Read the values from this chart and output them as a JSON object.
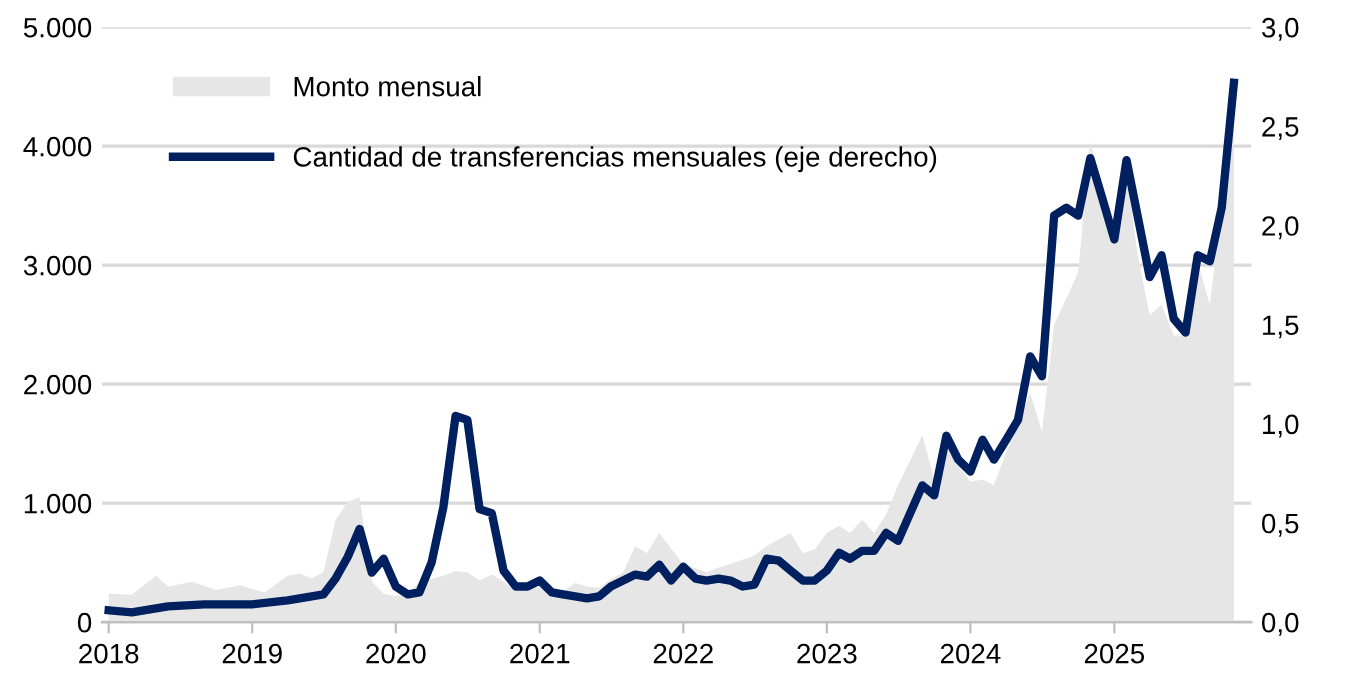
{
  "chart_data": {
    "type": "area",
    "series": [
      {
        "name": "Monto mensual",
        "color": "#e6e6e6",
        "x": [
          "2018-01",
          "2018-03",
          "2018-05",
          "2018-06",
          "2018-08",
          "2018-10",
          "2018-12",
          "2019-02",
          "2019-04",
          "2019-05",
          "2019-06",
          "2019-07",
          "2019-08",
          "2019-09",
          "2019-10",
          "2019-11",
          "2019-12",
          "2020-01",
          "2020-02",
          "2020-03",
          "2020-05",
          "2020-06",
          "2020-07",
          "2020-08",
          "2020-09",
          "2020-10",
          "2020-11",
          "2020-12",
          "2021-01",
          "2021-03",
          "2021-04",
          "2021-05",
          "2021-06",
          "2021-07",
          "2021-08",
          "2021-09",
          "2021-10",
          "2021-11",
          "2021-12",
          "2022-01",
          "2022-03",
          "2022-04",
          "2022-05",
          "2022-07",
          "2022-08",
          "2022-10",
          "2022-11",
          "2022-12",
          "2023-01",
          "2023-02",
          "2023-03",
          "2023-04",
          "2023-05",
          "2023-06",
          "2023-07",
          "2023-09",
          "2023-10",
          "2023-11",
          "2023-12",
          "2024-01",
          "2024-02",
          "2024-03",
          "2024-04",
          "2024-05",
          "2024-06",
          "2024-07",
          "2024-08",
          "2024-09",
          "2024-10",
          "2024-11",
          "2024-12",
          "2025-01",
          "2025-02",
          "2025-03",
          "2025-04",
          "2025-05",
          "2025-06",
          "2025-07",
          "2025-08",
          "2025-09",
          "2025-10",
          "2025-11"
        ],
        "values": [
          240,
          230,
          390,
          300,
          340,
          270,
          310,
          250,
          390,
          410,
          370,
          420,
          860,
          1010,
          1050,
          340,
          240,
          220,
          240,
          340,
          390,
          430,
          420,
          350,
          400,
          340,
          260,
          290,
          290,
          260,
          330,
          300,
          290,
          360,
          420,
          640,
          580,
          750,
          620,
          490,
          420,
          460,
          490,
          560,
          640,
          750,
          580,
          610,
          750,
          810,
          750,
          860,
          750,
          910,
          1150,
          1570,
          1200,
          1480,
          1320,
          1180,
          1200,
          1150,
          1430,
          1650,
          1930,
          1600,
          2500,
          2720,
          2940,
          4040,
          3620,
          3340,
          3790,
          3090,
          2580,
          2670,
          2410,
          2410,
          3020,
          2670,
          3510,
          4240
        ]
      },
      {
        "name": "Cantidad de transferencias mensuales (eje derecho)",
        "type": "line",
        "axis": "y2",
        "color": "#002060",
        "x": [
          "2018-01",
          "2018-03",
          "2018-06",
          "2018-09",
          "2019-01",
          "2019-04",
          "2019-06",
          "2019-07",
          "2019-08",
          "2019-09",
          "2019-10",
          "2019-11",
          "2019-12",
          "2020-01",
          "2020-02",
          "2020-03",
          "2020-04",
          "2020-05",
          "2020-06",
          "2020-07",
          "2020-08",
          "2020-09",
          "2020-10",
          "2020-11",
          "2020-12",
          "2021-01",
          "2021-02",
          "2021-03",
          "2021-04",
          "2021-05",
          "2021-06",
          "2021-07",
          "2021-08",
          "2021-09",
          "2021-10",
          "2021-11",
          "2021-12",
          "2022-01",
          "2022-02",
          "2022-03",
          "2022-04",
          "2022-05",
          "2022-06",
          "2022-07",
          "2022-08",
          "2022-09",
          "2022-10",
          "2022-11",
          "2022-12",
          "2023-01",
          "2023-02",
          "2023-03",
          "2023-04",
          "2023-05",
          "2023-06",
          "2023-07",
          "2023-08",
          "2023-09",
          "2023-10",
          "2023-11",
          "2023-12",
          "2024-01",
          "2024-02",
          "2024-03",
          "2024-04",
          "2024-05",
          "2024-06",
          "2024-07",
          "2024-08",
          "2024-09",
          "2024-10",
          "2024-11",
          "2024-12",
          "2025-01",
          "2025-02",
          "2025-03",
          "2025-04",
          "2025-05",
          "2025-06",
          "2025-07",
          "2025-08",
          "2025-09",
          "2025-10",
          "2025-11"
        ],
        "values": [
          0.06,
          0.05,
          0.08,
          0.09,
          0.09,
          0.11,
          0.13,
          0.14,
          0.22,
          0.33,
          0.47,
          0.25,
          0.32,
          0.18,
          0.14,
          0.15,
          0.3,
          0.58,
          1.04,
          1.02,
          0.57,
          0.55,
          0.26,
          0.18,
          0.18,
          0.21,
          0.15,
          0.14,
          0.13,
          0.12,
          0.13,
          0.18,
          0.21,
          0.24,
          0.23,
          0.29,
          0.21,
          0.28,
          0.22,
          0.21,
          0.22,
          0.21,
          0.18,
          0.19,
          0.32,
          0.31,
          0.26,
          0.21,
          0.21,
          0.26,
          0.35,
          0.32,
          0.36,
          0.36,
          0.45,
          0.41,
          0.55,
          0.69,
          0.64,
          0.94,
          0.82,
          0.76,
          0.92,
          0.82,
          0.92,
          1.02,
          1.34,
          1.24,
          2.05,
          2.09,
          2.05,
          2.34,
          2.14,
          1.93,
          2.33,
          2.05,
          1.74,
          1.85,
          1.53,
          1.46,
          1.85,
          1.82,
          2.09,
          2.72
        ]
      }
    ],
    "xlim": [
      "2017-12-15",
      "2025-12-15"
    ],
    "xticks": [
      "2018",
      "2019",
      "2020",
      "2021",
      "2022",
      "2023",
      "2024",
      "2025"
    ],
    "ylim": [
      0,
      5000
    ],
    "yticks": [
      {
        "value": 0,
        "label": "0"
      },
      {
        "value": 1000,
        "label": "1.000"
      },
      {
        "value": 2000,
        "label": "2.000"
      },
      {
        "value": 3000,
        "label": "3.000"
      },
      {
        "value": 4000,
        "label": "4.000"
      },
      {
        "value": 5000,
        "label": "5.000"
      }
    ],
    "y2lim": [
      0,
      3
    ],
    "y2ticks": [
      {
        "value": 0,
        "label": "0,0"
      },
      {
        "value": 0.5,
        "label": "0,5"
      },
      {
        "value": 1,
        "label": "1,0"
      },
      {
        "value": 1.5,
        "label": "1,5"
      },
      {
        "value": 2,
        "label": "2,0"
      },
      {
        "value": 2.5,
        "label": "2,5"
      },
      {
        "value": 3,
        "label": "3,0"
      }
    ],
    "grid": "y",
    "legend": "top left"
  }
}
